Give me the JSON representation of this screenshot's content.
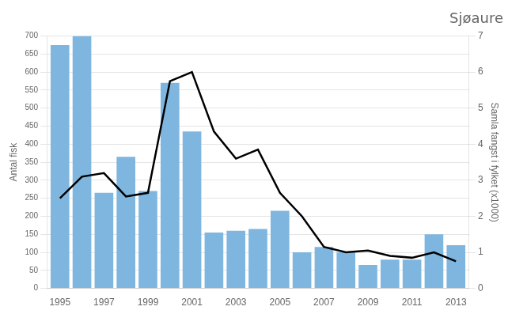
{
  "chart_data": {
    "type": "bar",
    "title": "Sjøaure",
    "x": [
      1995,
      1996,
      1997,
      1998,
      1999,
      2000,
      2001,
      2002,
      2003,
      2004,
      2005,
      2006,
      2007,
      2008,
      2009,
      2010,
      2011,
      2012,
      2013
    ],
    "xlim": [
      1994.4,
      2013.6
    ],
    "xticks": [
      1995,
      1997,
      1999,
      2001,
      2003,
      2005,
      2007,
      2009,
      2011,
      2013
    ],
    "ylabel": "Antal fisk",
    "ylim": [
      0,
      700
    ],
    "yticks": [
      0,
      50,
      100,
      150,
      200,
      250,
      300,
      350,
      400,
      450,
      500,
      550,
      600,
      650,
      700
    ],
    "y2label": "Samla fangst i fylket (x1000)",
    "y2lim": [
      0,
      7
    ],
    "y2ticks": [
      0,
      1,
      2,
      3,
      4,
      5,
      6,
      7
    ],
    "grid": "y",
    "series": [
      {
        "type": "bar",
        "color": "#7EB6E0",
        "values": [
          675,
          700,
          265,
          365,
          270,
          570,
          435,
          155,
          160,
          165,
          215,
          100,
          115,
          100,
          65,
          80,
          80,
          150,
          120
        ]
      },
      {
        "type": "line",
        "color": "#000000",
        "axis": "y2",
        "values": [
          2.5,
          3.1,
          3.2,
          2.55,
          2.65,
          5.75,
          6.0,
          4.35,
          3.6,
          3.85,
          2.65,
          2.0,
          1.15,
          1.0,
          1.05,
          0.9,
          0.85,
          1.0,
          0.75
        ]
      }
    ]
  }
}
